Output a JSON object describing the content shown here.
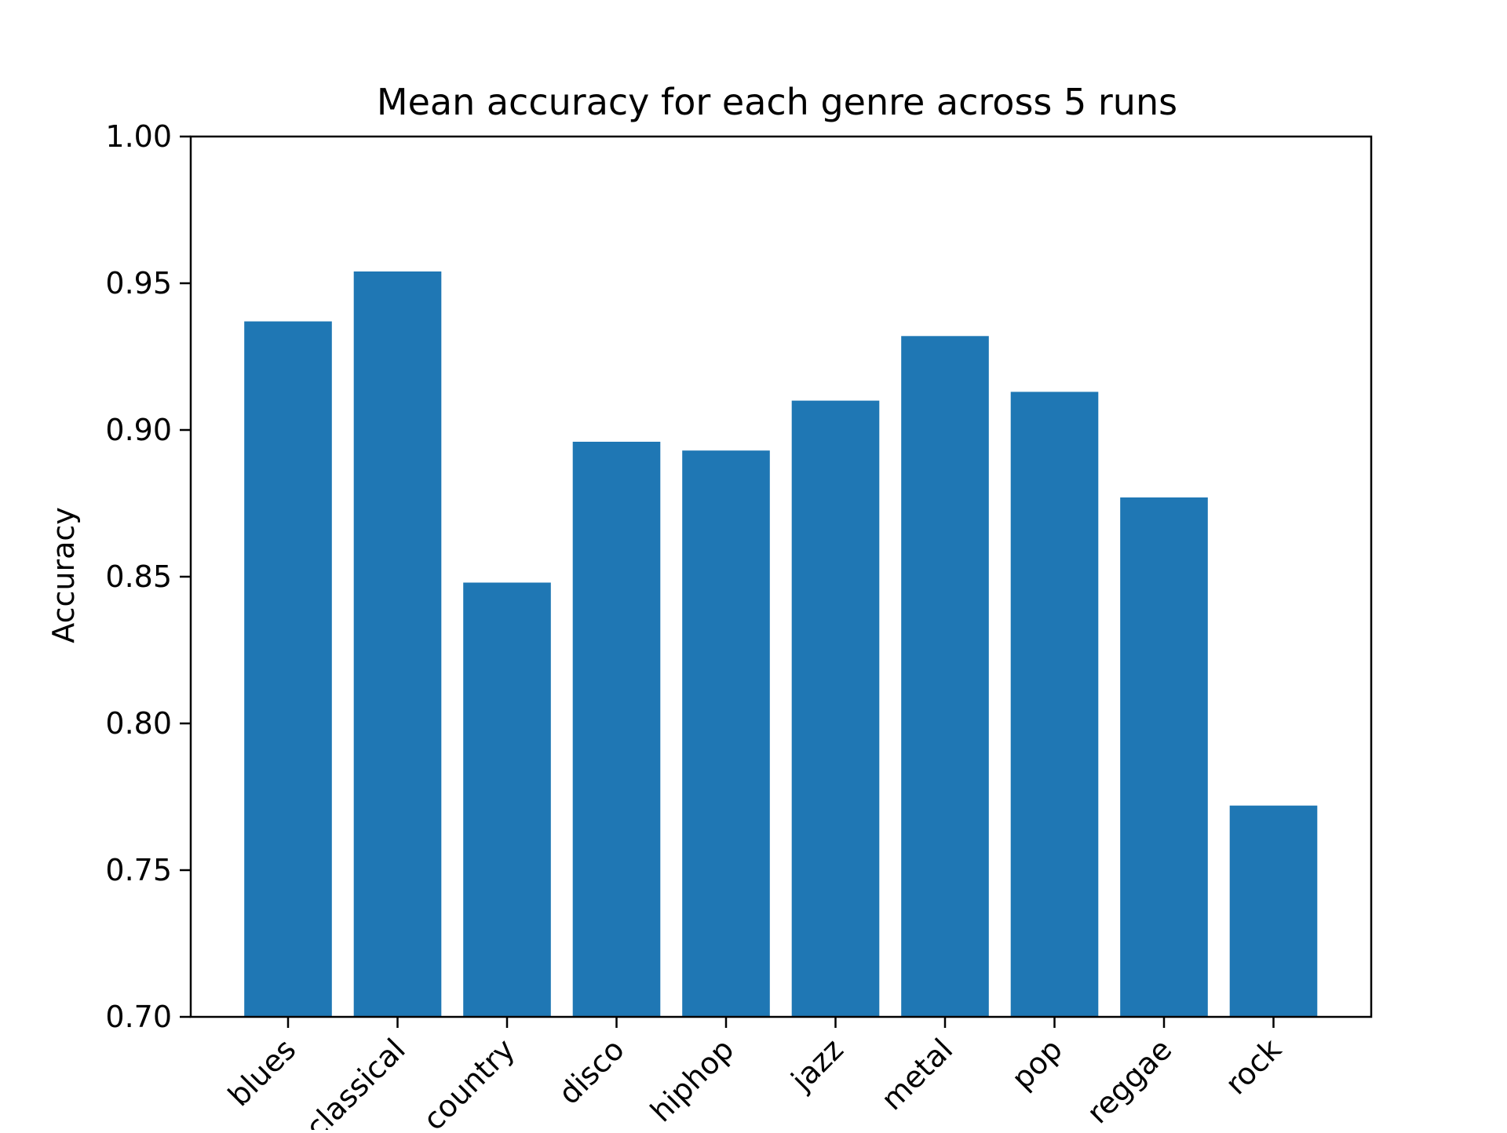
{
  "chart_data": {
    "type": "bar",
    "title": "Mean accuracy for each genre across 5 runs",
    "xlabel": "",
    "ylabel": "Accuracy",
    "categories": [
      "blues",
      "classical",
      "country",
      "disco",
      "hiphop",
      "jazz",
      "metal",
      "pop",
      "reggae",
      "rock"
    ],
    "values": [
      0.937,
      0.954,
      0.848,
      0.896,
      0.893,
      0.91,
      0.932,
      0.913,
      0.877,
      0.772
    ],
    "ylim": [
      0.7,
      1.0
    ],
    "yticks": [
      "0.70",
      "0.75",
      "0.80",
      "0.85",
      "0.90",
      "0.95",
      "1.00"
    ],
    "x_tick_rotation": "45 degrees",
    "grid": false,
    "legend": "none",
    "bar_color": "#1f77b4"
  }
}
